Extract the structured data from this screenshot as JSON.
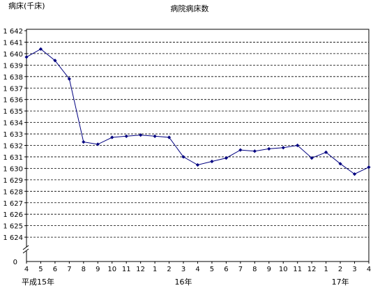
{
  "chart_data": {
    "type": "line",
    "title": "病院病床数",
    "ylabel": "病床(千床)",
    "xlabel": "",
    "ylim": [
      1624,
      1642
    ],
    "y_baseline_label": "0",
    "y_axis_break": true,
    "grid": true,
    "legend": "none",
    "yticks": [
      "1 624",
      "1 625",
      "1 626",
      "1 627",
      "1 628",
      "1 629",
      "1 630",
      "1 631",
      "1 632",
      "1 633",
      "1 634",
      "1 635",
      "1 636",
      "1 637",
      "1 638",
      "1 639",
      "1 640",
      "1 641",
      "1 642"
    ],
    "categories": [
      "4",
      "5",
      "6",
      "7",
      "8",
      "9",
      "10",
      "11",
      "12",
      "1",
      "2",
      "3",
      "4",
      "5",
      "6",
      "7",
      "8",
      "9",
      "10",
      "11",
      "12",
      "1",
      "2",
      "3",
      "4"
    ],
    "year_labels": [
      {
        "at_index": 0,
        "label": "平成15年"
      },
      {
        "at_index": 11,
        "label": "16年"
      },
      {
        "at_index": 22,
        "label": "17年"
      }
    ],
    "series": [
      {
        "values": [
          1639.7,
          1640.4,
          1639.4,
          1637.8,
          1632.3,
          1632.1,
          1632.7,
          1632.8,
          1632.9,
          1632.8,
          1632.7,
          1631.0,
          1630.3,
          1630.6,
          1630.9,
          1631.6,
          1631.5,
          1631.7,
          1631.8,
          1632.0,
          1630.9,
          1631.4,
          1630.4,
          1629.5,
          1630.1
        ],
        "color": "#000080"
      }
    ]
  }
}
